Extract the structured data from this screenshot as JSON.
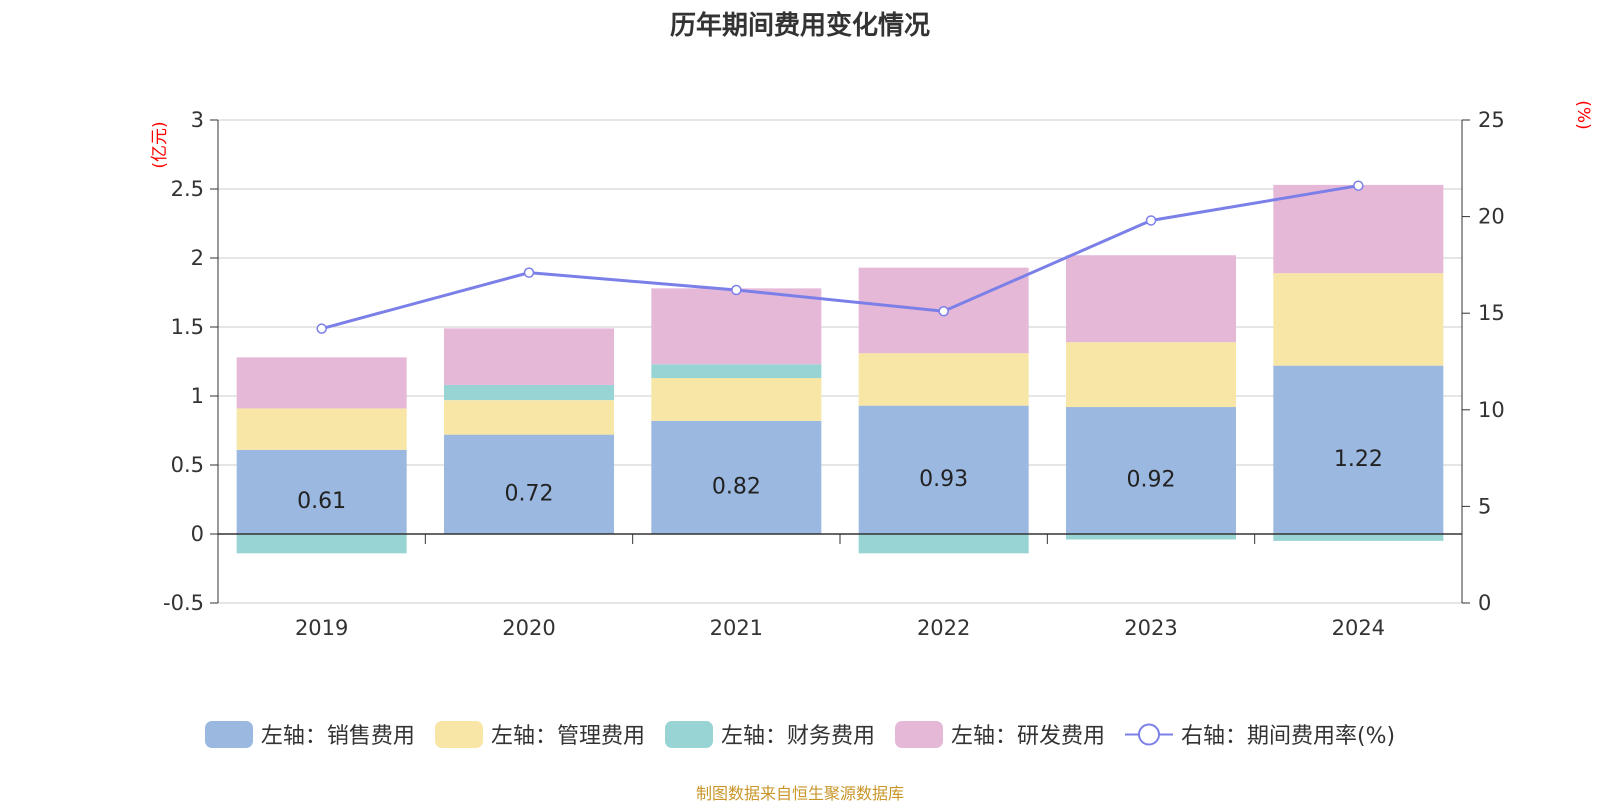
{
  "title": "历年期间费用变化情况",
  "source_note": "制图数据来自恒生聚源数据库",
  "chart_data": {
    "type": "bar",
    "stacked": true,
    "categories": [
      "2019",
      "2020",
      "2021",
      "2022",
      "2023",
      "2024"
    ],
    "left_axis": {
      "unit": "(亿元)",
      "ylim": [
        -0.5,
        3
      ],
      "ticks": [
        "3",
        "2.5",
        "2",
        "1.5",
        "1",
        "0.5",
        "0",
        "-0.5"
      ]
    },
    "right_axis": {
      "unit": "(%)",
      "ylim": [
        0,
        25
      ],
      "ticks": [
        "25",
        "20",
        "15",
        "10",
        "5",
        "0"
      ]
    },
    "series": [
      {
        "name": "左轴：销售费用",
        "axis": "left",
        "color": "#9bb8e0",
        "values": [
          0.61,
          0.72,
          0.82,
          0.93,
          0.92,
          1.22
        ],
        "show_labels": true
      },
      {
        "name": "左轴：管理费用",
        "axis": "left",
        "color": "#f7e6a6",
        "values": [
          0.3,
          0.25,
          0.31,
          0.38,
          0.47,
          0.67
        ]
      },
      {
        "name": "左轴：财务费用",
        "axis": "left",
        "color": "#98d4d4",
        "values": [
          -0.14,
          0.11,
          0.1,
          -0.14,
          -0.04,
          -0.05
        ]
      },
      {
        "name": "左轴：研发费用",
        "axis": "left",
        "color": "#e6b8d8",
        "values": [
          0.37,
          0.41,
          0.55,
          0.62,
          0.63,
          0.64
        ]
      },
      {
        "name": "右轴：期间费用率(%)",
        "axis": "right",
        "type": "line",
        "color": "#7b7fe8",
        "values": [
          14.2,
          17.1,
          16.2,
          15.1,
          19.8,
          21.6
        ]
      }
    ],
    "grid": true,
    "legend_position": "bottom"
  }
}
